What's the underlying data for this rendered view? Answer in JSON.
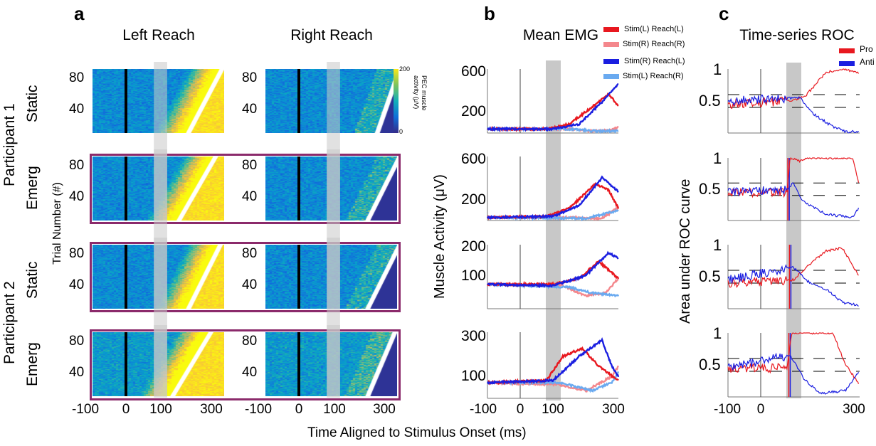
{
  "labels": {
    "a": "a",
    "b": "b",
    "c": "c"
  },
  "titles": {
    "left": "Left Reach",
    "right": "Right Reach",
    "emg": "Mean EMG",
    "roc": "Time-series ROC"
  },
  "rows": [
    "Static",
    "Emerg",
    "Static",
    "Emerg"
  ],
  "participants": [
    "Participant 1",
    "Participant 2"
  ],
  "ylabels": {
    "trial": "Trial Number (#)",
    "muscle": "Muscle Activity (μV)",
    "roc": "Area under ROC curve"
  },
  "xlabel": "Time Aligned to Stimulus Onset (ms)",
  "colorbar": {
    "max": "200",
    "min": "0",
    "label1": "PEC muscle",
    "label2": "activity (μV)"
  },
  "heat_ticks": [
    "80",
    "40"
  ],
  "x_ticks": [
    "-100",
    "0",
    "100",
    "300"
  ],
  "roc_x_ticks": [
    "-100",
    "0",
    "300"
  ],
  "colors": {
    "red": "#e8181f",
    "pink": "#f4878c",
    "blue": "#1a1ee0",
    "lightblue": "#6aaaf0",
    "box": "#8b2a6b",
    "band": "#c8c8c8"
  },
  "chart_data": [
    {
      "type": "heatmap",
      "panel": "a",
      "title": "Left Reach / Right Reach",
      "xlabel": "Time Aligned to Stimulus Onset (ms)",
      "ylabel": "Trial Number (#)",
      "xlim": [
        -100,
        300
      ],
      "ylim": [
        0,
        90
      ],
      "shaded_window_ms": [
        80,
        120
      ],
      "reaction_time_ranges_ms": {
        "left": [
          [
            180,
            285
          ],
          [
            150,
            265
          ],
          [
            180,
            280
          ],
          [
            130,
            250
          ]
        ],
        "right": [
          [
            230,
            300
          ],
          [
            200,
            300
          ],
          [
            200,
            300
          ],
          [
            200,
            285
          ]
        ]
      },
      "color_range_uV": [
        0,
        200
      ]
    },
    {
      "type": "line",
      "panel": "b",
      "title": "Mean EMG",
      "ylabel": "Muscle Activity (μV)",
      "xlim": [
        -100,
        300
      ],
      "legend": [
        "Stim(L) Reach(L)",
        "Stim(R) Reach(R)",
        "Stim(R) Reach(L)",
        "Stim(L) Reach(R)"
      ],
      "subplots": [
        {
          "yticks": [
            "600",
            "200"
          ],
          "ytick_values": [
            600,
            200
          ],
          "ylim": [
            -10,
            650
          ],
          "series": [
            [
              [
                -100,
                30
              ],
              [
                80,
                30
              ],
              [
                150,
                80
              ],
              [
                220,
                250
              ],
              [
                270,
                380
              ],
              [
                300,
                260
              ]
            ],
            [
              [
                -100,
                30
              ],
              [
                150,
                30
              ],
              [
                220,
                10
              ],
              [
                280,
                20
              ],
              [
                300,
                50
              ]
            ],
            [
              [
                -100,
                30
              ],
              [
                100,
                30
              ],
              [
                180,
                80
              ],
              [
                250,
                300
              ],
              [
                300,
                480
              ]
            ],
            [
              [
                -100,
                30
              ],
              [
                150,
                30
              ],
              [
                220,
                10
              ],
              [
                300,
                10
              ]
            ]
          ]
        },
        {
          "yticks": [
            "600",
            "200"
          ],
          "ytick_values": [
            600,
            200
          ],
          "ylim": [
            0,
            650
          ],
          "series": [
            [
              [
                -100,
                30
              ],
              [
                80,
                40
              ],
              [
                150,
                120
              ],
              [
                230,
                360
              ],
              [
                270,
                300
              ],
              [
                300,
                120
              ]
            ],
            [
              [
                -100,
                30
              ],
              [
                150,
                30
              ],
              [
                250,
                20
              ],
              [
                300,
                130
              ]
            ],
            [
              [
                -100,
                30
              ],
              [
                100,
                40
              ],
              [
                180,
                150
              ],
              [
                250,
                420
              ],
              [
                300,
                280
              ]
            ],
            [
              [
                -100,
                30
              ],
              [
                200,
                20
              ],
              [
                300,
                100
              ]
            ]
          ]
        },
        {
          "yticks": [
            "200",
            "100"
          ],
          "ytick_values": [
            200,
            100
          ],
          "ylim": [
            -15,
            215
          ],
          "series": [
            [
              [
                -100,
                70
              ],
              [
                100,
                70
              ],
              [
                180,
                90
              ],
              [
                240,
                150
              ],
              [
                270,
                120
              ],
              [
                300,
                90
              ]
            ],
            [
              [
                -100,
                70
              ],
              [
                120,
                70
              ],
              [
                200,
                30
              ],
              [
                260,
                40
              ],
              [
                300,
                90
              ]
            ],
            [
              [
                -100,
                70
              ],
              [
                100,
                65
              ],
              [
                200,
                100
              ],
              [
                270,
                180
              ],
              [
                300,
                160
              ]
            ],
            [
              [
                -100,
                70
              ],
              [
                150,
                60
              ],
              [
                220,
                40
              ],
              [
                300,
                30
              ]
            ]
          ]
        },
        {
          "yticks": [
            "300",
            "100"
          ],
          "ytick_values": [
            300,
            100
          ],
          "ylim": [
            -8,
            330
          ],
          "series": [
            [
              [
                -100,
                70
              ],
              [
                80,
                80
              ],
              [
                130,
                200
              ],
              [
                190,
                240
              ],
              [
                240,
                150
              ],
              [
                300,
                80
              ]
            ],
            [
              [
                -100,
                70
              ],
              [
                120,
                60
              ],
              [
                200,
                30
              ],
              [
                280,
                100
              ],
              [
                300,
                150
              ]
            ],
            [
              [
                -100,
                70
              ],
              [
                100,
                80
              ],
              [
                180,
                200
              ],
              [
                250,
                280
              ],
              [
                280,
                150
              ],
              [
                300,
                100
              ]
            ],
            [
              [
                -100,
                70
              ],
              [
                120,
                70
              ],
              [
                220,
                30
              ],
              [
                280,
                70
              ],
              [
                300,
                120
              ]
            ]
          ]
        }
      ]
    },
    {
      "type": "line",
      "panel": "c",
      "title": "Time-series ROC",
      "ylabel": "Area under ROC curve",
      "xlim": [
        -100,
        300
      ],
      "ylim": [
        0,
        1
      ],
      "legend": [
        "Pro",
        "Anti"
      ],
      "dashed_levels": [
        0.6,
        0.4
      ],
      "subplots": [
        {
          "yticks": [
            "1",
            "0.5"
          ],
          "pro": [
            [
              -100,
              0.45
            ],
            [
              100,
              0.5
            ],
            [
              140,
              0.6
            ],
            [
              200,
              0.95
            ],
            [
              260,
              1
            ],
            [
              300,
              0.93
            ]
          ],
          "anti": [
            [
              -100,
              0.5
            ],
            [
              120,
              0.55
            ],
            [
              160,
              0.3
            ],
            [
              220,
              0.1
            ],
            [
              260,
              0.02
            ],
            [
              300,
              0.02
            ]
          ]
        },
        {
          "yticks": [
            "1",
            "0.5"
          ],
          "onset_ms": 85,
          "pro": [
            [
              -100,
              0.45
            ],
            [
              80,
              0.45
            ],
            [
              90,
              1
            ],
            [
              120,
              0.95
            ],
            [
              150,
              1
            ],
            [
              280,
              1
            ],
            [
              300,
              0.6
            ]
          ],
          "anti": [
            [
              -100,
              0.45
            ],
            [
              80,
              0.5
            ],
            [
              100,
              0.6
            ],
            [
              130,
              0.3
            ],
            [
              200,
              0.1
            ],
            [
              280,
              0.05
            ],
            [
              300,
              0.2
            ]
          ]
        },
        {
          "yticks": [
            "1",
            "0.5"
          ],
          "onset_ms": 90,
          "pro": [
            [
              -100,
              0.4
            ],
            [
              100,
              0.45
            ],
            [
              150,
              0.7
            ],
            [
              200,
              0.9
            ],
            [
              250,
              0.95
            ],
            [
              300,
              0.5
            ]
          ],
          "anti": [
            [
              -100,
              0.45
            ],
            [
              100,
              0.65
            ],
            [
              150,
              0.4
            ],
            [
              200,
              0.3
            ],
            [
              250,
              0.1
            ],
            [
              300,
              0.05
            ]
          ]
        },
        {
          "yticks": [
            "1",
            "0.5"
          ],
          "onset_ms": 88,
          "pro": [
            [
              -100,
              0.45
            ],
            [
              80,
              0.45
            ],
            [
              95,
              1
            ],
            [
              220,
              1
            ],
            [
              260,
              0.5
            ],
            [
              300,
              0.2
            ]
          ],
          "anti": [
            [
              -100,
              0.45
            ],
            [
              90,
              0.65
            ],
            [
              130,
              0.3
            ],
            [
              180,
              0.05
            ],
            [
              260,
              0.1
            ],
            [
              300,
              0.4
            ]
          ]
        }
      ]
    }
  ]
}
